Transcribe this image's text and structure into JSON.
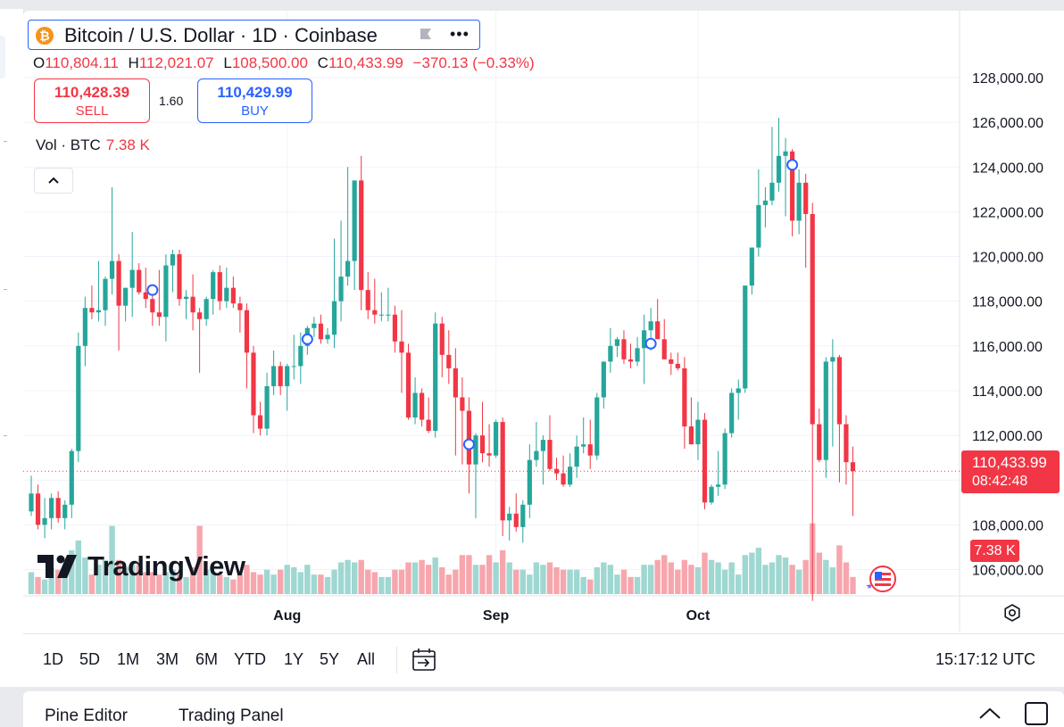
{
  "header": {
    "symbol_title": "Bitcoin / U.S. Dollar · 1D · Coinbase",
    "symbol_icon": "bitcoin-icon",
    "more_icon": "•••",
    "ohlc": {
      "o_label": "O",
      "o_value": "110,804.11",
      "h_label": "H",
      "h_value": "112,021.07",
      "l_label": "L",
      "l_value": "108,500.00",
      "c_label": "C",
      "c_value": "110,433.99",
      "change": "−370.13 (−0.33%)"
    }
  },
  "trade": {
    "sell_price": "110,428.39",
    "sell_label": "SELL",
    "spread": "1.60",
    "buy_price": "110,429.99",
    "buy_label": "BUY"
  },
  "volume_legend": {
    "label": "Vol · BTC",
    "value": "7.38 K"
  },
  "branding": {
    "logo_text": "TradingView"
  },
  "price_scale": {
    "labels": [
      "128,000.00",
      "126,000.00",
      "124,000.00",
      "122,000.00",
      "120,000.00",
      "118,000.00",
      "116,000.00",
      "114,000.00",
      "112,000.00",
      "110,000.00",
      "108,000.00",
      "106,000.00"
    ],
    "last_price": "110,433.99",
    "countdown": "08:42:48",
    "volume_tag": "7.38 K"
  },
  "time_scale": {
    "labels": [
      "Aug",
      "Sep",
      "Oct"
    ]
  },
  "bottom_toolbar": {
    "ranges": [
      "1D",
      "5D",
      "1M",
      "3M",
      "6M",
      "YTD",
      "1Y",
      "5Y",
      "All"
    ],
    "clock": "15:17:12 UTC"
  },
  "lower_panel": {
    "tabs": [
      "Pine Editor",
      "Trading Panel"
    ]
  },
  "colors": {
    "up": "#26a69a",
    "down": "#f23645",
    "up_volume": "#9fd7d1",
    "down_volume": "#f7a6ad",
    "accent": "#2962ff"
  },
  "chart_data": {
    "type": "candlestick",
    "title": "Bitcoin / U.S. Dollar · 1D · Coinbase",
    "ylim": [
      105000,
      128500
    ],
    "y_ticks": [
      106000,
      108000,
      110000,
      112000,
      114000,
      116000,
      118000,
      120000,
      122000,
      124000,
      126000,
      128000
    ],
    "x_ticks": [
      {
        "label": "Aug",
        "index": 38
      },
      {
        "label": "Sep",
        "index": 69
      },
      {
        "label": "Oct",
        "index": 99
      }
    ],
    "volume_max": 30,
    "candles": [
      {
        "o": 108600,
        "h": 110200,
        "l": 108400,
        "c": 109400,
        "v": 9
      },
      {
        "o": 109400,
        "h": 109800,
        "l": 107800,
        "c": 108000,
        "v": 7
      },
      {
        "o": 108000,
        "h": 109200,
        "l": 107400,
        "c": 108300,
        "v": 6
      },
      {
        "o": 108300,
        "h": 109400,
        "l": 107800,
        "c": 109200,
        "v": 11
      },
      {
        "o": 109200,
        "h": 109500,
        "l": 108100,
        "c": 108300,
        "v": 10
      },
      {
        "o": 108300,
        "h": 109100,
        "l": 107800,
        "c": 108900,
        "v": 9
      },
      {
        "o": 108900,
        "h": 111400,
        "l": 108300,
        "c": 111300,
        "v": 18
      },
      {
        "o": 111300,
        "h": 116600,
        "l": 110800,
        "c": 116000,
        "v": 22
      },
      {
        "o": 116000,
        "h": 118200,
        "l": 115100,
        "c": 117700,
        "v": 15
      },
      {
        "o": 117700,
        "h": 118700,
        "l": 117200,
        "c": 117500,
        "v": 8
      },
      {
        "o": 117500,
        "h": 119800,
        "l": 117100,
        "c": 117600,
        "v": 12
      },
      {
        "o": 117600,
        "h": 119100,
        "l": 116900,
        "c": 119000,
        "v": 14
      },
      {
        "o": 119000,
        "h": 123100,
        "l": 118300,
        "c": 119800,
        "v": 28
      },
      {
        "o": 119800,
        "h": 120100,
        "l": 115800,
        "c": 117800,
        "v": 14
      },
      {
        "o": 117800,
        "h": 118600,
        "l": 117100,
        "c": 118600,
        "v": 11
      },
      {
        "o": 118600,
        "h": 121100,
        "l": 117300,
        "c": 119400,
        "v": 12
      },
      {
        "o": 119400,
        "h": 119700,
        "l": 118300,
        "c": 118400,
        "v": 12
      },
      {
        "o": 118400,
        "h": 119500,
        "l": 117700,
        "c": 118100,
        "v": 9
      },
      {
        "o": 118100,
        "h": 118300,
        "l": 116900,
        "c": 117500,
        "v": 9
      },
      {
        "o": 117500,
        "h": 119400,
        "l": 116900,
        "c": 117300,
        "v": 8
      },
      {
        "o": 117300,
        "h": 120100,
        "l": 116200,
        "c": 119600,
        "v": 9
      },
      {
        "o": 119600,
        "h": 120300,
        "l": 118400,
        "c": 120100,
        "v": 10
      },
      {
        "o": 120100,
        "h": 120300,
        "l": 117800,
        "c": 118100,
        "v": 8
      },
      {
        "o": 118100,
        "h": 118500,
        "l": 117200,
        "c": 118200,
        "v": 7
      },
      {
        "o": 118200,
        "h": 119200,
        "l": 116700,
        "c": 117500,
        "v": 11
      },
      {
        "o": 117500,
        "h": 117700,
        "l": 114800,
        "c": 117200,
        "v": 28
      },
      {
        "o": 117200,
        "h": 118200,
        "l": 116900,
        "c": 118100,
        "v": 10
      },
      {
        "o": 118100,
        "h": 119400,
        "l": 117400,
        "c": 119300,
        "v": 9
      },
      {
        "o": 119300,
        "h": 119600,
        "l": 117600,
        "c": 118000,
        "v": 8
      },
      {
        "o": 118000,
        "h": 119500,
        "l": 117700,
        "c": 118600,
        "v": 7
      },
      {
        "o": 118600,
        "h": 119100,
        "l": 117700,
        "c": 117900,
        "v": 6
      },
      {
        "o": 117900,
        "h": 118200,
        "l": 116600,
        "c": 117600,
        "v": 8
      },
      {
        "o": 117600,
        "h": 117900,
        "l": 114100,
        "c": 115700,
        "v": 12
      },
      {
        "o": 115700,
        "h": 116000,
        "l": 112100,
        "c": 112900,
        "v": 9
      },
      {
        "o": 112900,
        "h": 113500,
        "l": 112000,
        "c": 112300,
        "v": 8
      },
      {
        "o": 112300,
        "h": 114800,
        "l": 112000,
        "c": 114200,
        "v": 10
      },
      {
        "o": 114200,
        "h": 115800,
        "l": 113800,
        "c": 115100,
        "v": 8
      },
      {
        "o": 115100,
        "h": 115300,
        "l": 113800,
        "c": 114200,
        "v": 10
      },
      {
        "o": 114200,
        "h": 115200,
        "l": 113100,
        "c": 115100,
        "v": 12
      },
      {
        "o": 115100,
        "h": 116500,
        "l": 114500,
        "c": 115100,
        "v": 11
      },
      {
        "o": 115100,
        "h": 116600,
        "l": 114300,
        "c": 116000,
        "v": 9
      },
      {
        "o": 116000,
        "h": 116900,
        "l": 115600,
        "c": 116800,
        "v": 12
      },
      {
        "o": 116800,
        "h": 117300,
        "l": 116400,
        "c": 117000,
        "v": 8
      },
      {
        "o": 117000,
        "h": 117400,
        "l": 116100,
        "c": 116300,
        "v": 8
      },
      {
        "o": 116300,
        "h": 116800,
        "l": 116100,
        "c": 116500,
        "v": 7
      },
      {
        "o": 116500,
        "h": 120800,
        "l": 115900,
        "c": 118000,
        "v": 10
      },
      {
        "o": 118000,
        "h": 121600,
        "l": 117100,
        "c": 119100,
        "v": 13
      },
      {
        "o": 119100,
        "h": 124000,
        "l": 118700,
        "c": 119800,
        "v": 14
      },
      {
        "o": 119800,
        "h": 123400,
        "l": 118500,
        "c": 123400,
        "v": 13
      },
      {
        "o": 123400,
        "h": 124500,
        "l": 117600,
        "c": 118500,
        "v": 14
      },
      {
        "o": 118500,
        "h": 119300,
        "l": 117200,
        "c": 117600,
        "v": 10
      },
      {
        "o": 117600,
        "h": 119000,
        "l": 117000,
        "c": 117400,
        "v": 9
      },
      {
        "o": 117400,
        "h": 118400,
        "l": 117100,
        "c": 117400,
        "v": 7
      },
      {
        "o": 117400,
        "h": 118600,
        "l": 117100,
        "c": 117400,
        "v": 7
      },
      {
        "o": 117400,
        "h": 117800,
        "l": 115700,
        "c": 116200,
        "v": 10
      },
      {
        "o": 116200,
        "h": 117600,
        "l": 113900,
        "c": 115700,
        "v": 10
      },
      {
        "o": 115700,
        "h": 116100,
        "l": 112700,
        "c": 112800,
        "v": 13
      },
      {
        "o": 112800,
        "h": 114600,
        "l": 112500,
        "c": 113900,
        "v": 13
      },
      {
        "o": 113900,
        "h": 114100,
        "l": 112400,
        "c": 112700,
        "v": 14
      },
      {
        "o": 112700,
        "h": 113700,
        "l": 112100,
        "c": 112200,
        "v": 12
      },
      {
        "o": 112200,
        "h": 117500,
        "l": 111900,
        "c": 117000,
        "v": 15
      },
      {
        "o": 117000,
        "h": 117300,
        "l": 114600,
        "c": 115600,
        "v": 11
      },
      {
        "o": 115600,
        "h": 116700,
        "l": 114300,
        "c": 115000,
        "v": 8
      },
      {
        "o": 115000,
        "h": 115900,
        "l": 111100,
        "c": 113700,
        "v": 10
      },
      {
        "o": 113700,
        "h": 114600,
        "l": 110700,
        "c": 113100,
        "v": 16
      },
      {
        "o": 113100,
        "h": 113700,
        "l": 109400,
        "c": 110700,
        "v": 16
      },
      {
        "o": 110700,
        "h": 112100,
        "l": 108300,
        "c": 112000,
        "v": 12
      },
      {
        "o": 112000,
        "h": 113500,
        "l": 110800,
        "c": 111200,
        "v": 12
      },
      {
        "o": 111200,
        "h": 112500,
        "l": 110600,
        "c": 111100,
        "v": 16
      },
      {
        "o": 111100,
        "h": 112700,
        "l": 111000,
        "c": 112600,
        "v": 13
      },
      {
        "o": 112600,
        "h": 112800,
        "l": 107500,
        "c": 108200,
        "v": 18
      },
      {
        "o": 108200,
        "h": 108800,
        "l": 107300,
        "c": 108500,
        "v": 13
      },
      {
        "o": 108500,
        "h": 109400,
        "l": 107700,
        "c": 107900,
        "v": 10
      },
      {
        "o": 107900,
        "h": 109100,
        "l": 107200,
        "c": 108900,
        "v": 10
      },
      {
        "o": 108900,
        "h": 111600,
        "l": 108300,
        "c": 110900,
        "v": 8
      },
      {
        "o": 110900,
        "h": 112600,
        "l": 110600,
        "c": 111300,
        "v": 13
      },
      {
        "o": 111300,
        "h": 112000,
        "l": 109800,
        "c": 111800,
        "v": 12
      },
      {
        "o": 111800,
        "h": 112900,
        "l": 110400,
        "c": 110500,
        "v": 13
      },
      {
        "o": 110500,
        "h": 111000,
        "l": 110000,
        "c": 110300,
        "v": 11
      },
      {
        "o": 110300,
        "h": 111100,
        "l": 109700,
        "c": 109800,
        "v": 10
      },
      {
        "o": 109800,
        "h": 111200,
        "l": 109700,
        "c": 110600,
        "v": 10
      },
      {
        "o": 110600,
        "h": 112000,
        "l": 110100,
        "c": 111500,
        "v": 10
      },
      {
        "o": 111500,
        "h": 112800,
        "l": 111200,
        "c": 111600,
        "v": 7
      },
      {
        "o": 111600,
        "h": 112700,
        "l": 110500,
        "c": 111100,
        "v": 6
      },
      {
        "o": 111100,
        "h": 113900,
        "l": 110900,
        "c": 113700,
        "v": 11
      },
      {
        "o": 113700,
        "h": 115200,
        "l": 113200,
        "c": 115300,
        "v": 13
      },
      {
        "o": 115300,
        "h": 116800,
        "l": 114800,
        "c": 116000,
        "v": 12
      },
      {
        "o": 116000,
        "h": 116400,
        "l": 115500,
        "c": 116300,
        "v": 8
      },
      {
        "o": 116300,
        "h": 116700,
        "l": 115200,
        "c": 115400,
        "v": 10
      },
      {
        "o": 115400,
        "h": 116100,
        "l": 115000,
        "c": 115300,
        "v": 7
      },
      {
        "o": 115300,
        "h": 116400,
        "l": 115100,
        "c": 115900,
        "v": 7
      },
      {
        "o": 115900,
        "h": 117400,
        "l": 114300,
        "c": 116700,
        "v": 12
      },
      {
        "o": 116700,
        "h": 117700,
        "l": 115800,
        "c": 117100,
        "v": 12
      },
      {
        "o": 117100,
        "h": 118100,
        "l": 116500,
        "c": 116300,
        "v": 14
      },
      {
        "o": 116300,
        "h": 117200,
        "l": 115400,
        "c": 115400,
        "v": 16
      },
      {
        "o": 115400,
        "h": 115700,
        "l": 114700,
        "c": 115200,
        "v": 13
      },
      {
        "o": 115200,
        "h": 115700,
        "l": 114900,
        "c": 115000,
        "v": 10
      },
      {
        "o": 115000,
        "h": 115500,
        "l": 111400,
        "c": 112400,
        "v": 14
      },
      {
        "o": 112400,
        "h": 113700,
        "l": 111600,
        "c": 111600,
        "v": 12
      },
      {
        "o": 111600,
        "h": 113500,
        "l": 110900,
        "c": 112700,
        "v": 11
      },
      {
        "o": 112700,
        "h": 113000,
        "l": 108700,
        "c": 109000,
        "v": 17
      },
      {
        "o": 109000,
        "h": 109800,
        "l": 108900,
        "c": 109700,
        "v": 14
      },
      {
        "o": 109700,
        "h": 111300,
        "l": 109300,
        "c": 109800,
        "v": 13
      },
      {
        "o": 109800,
        "h": 112300,
        "l": 109600,
        "c": 112100,
        "v": 10
      },
      {
        "o": 112100,
        "h": 114100,
        "l": 111900,
        "c": 113900,
        "v": 13
      },
      {
        "o": 113900,
        "h": 114500,
        "l": 112700,
        "c": 114100,
        "v": 8
      },
      {
        "o": 114100,
        "h": 118700,
        "l": 113900,
        "c": 118700,
        "v": 16
      },
      {
        "o": 118700,
        "h": 120300,
        "l": 118300,
        "c": 120400,
        "v": 17
      },
      {
        "o": 120400,
        "h": 123900,
        "l": 120000,
        "c": 122300,
        "v": 19
      },
      {
        "o": 122300,
        "h": 123100,
        "l": 121300,
        "c": 122500,
        "v": 12
      },
      {
        "o": 122500,
        "h": 125800,
        "l": 122300,
        "c": 123300,
        "v": 13
      },
      {
        "o": 123300,
        "h": 126200,
        "l": 122900,
        "c": 124500,
        "v": 16
      },
      {
        "o": 124500,
        "h": 125300,
        "l": 121800,
        "c": 124700,
        "v": 15
      },
      {
        "o": 124700,
        "h": 124800,
        "l": 120900,
        "c": 121600,
        "v": 12
      },
      {
        "o": 121600,
        "h": 123900,
        "l": 121000,
        "c": 123300,
        "v": 10
      },
      {
        "o": 123300,
        "h": 123700,
        "l": 119500,
        "c": 121900,
        "v": 14
      },
      {
        "o": 121900,
        "h": 122400,
        "l": 104600,
        "c": 112500,
        "v": 29
      },
      {
        "o": 112500,
        "h": 113200,
        "l": 110800,
        "c": 110900,
        "v": 17
      },
      {
        "o": 110900,
        "h": 115500,
        "l": 110100,
        "c": 115300,
        "v": 14
      },
      {
        "o": 115300,
        "h": 116300,
        "l": 111500,
        "c": 115500,
        "v": 11
      },
      {
        "o": 115500,
        "h": 115600,
        "l": 109900,
        "c": 112500,
        "v": 20
      },
      {
        "o": 112500,
        "h": 112900,
        "l": 109800,
        "c": 110800,
        "v": 13
      },
      {
        "o": 110800,
        "h": 111500,
        "l": 108400,
        "c": 110400,
        "v": 7
      }
    ],
    "markers": [
      {
        "index": 18,
        "value": 118500
      },
      {
        "index": 41,
        "value": 116300
      },
      {
        "index": 65,
        "value": 111600
      },
      {
        "index": 92,
        "value": 116100
      },
      {
        "index": 113,
        "value": 124100
      }
    ]
  }
}
